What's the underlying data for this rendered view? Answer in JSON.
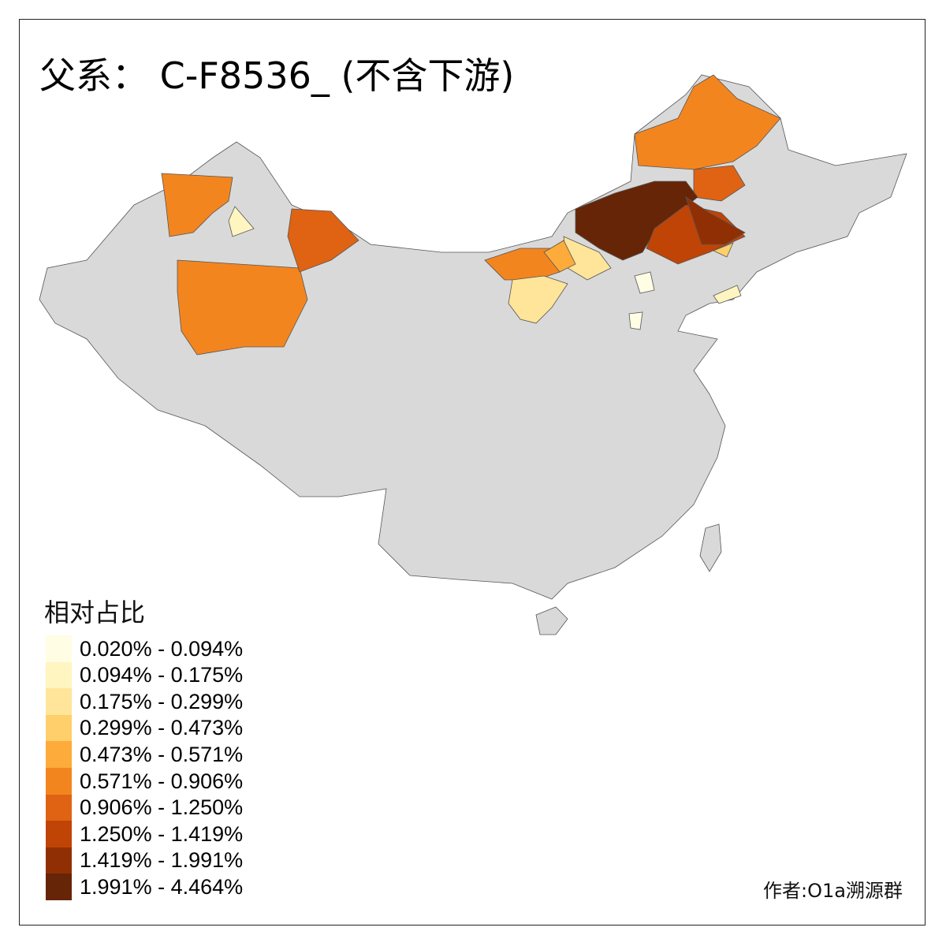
{
  "title": "父系： C-F8536_ (不含下游)",
  "legend": {
    "title": "相对占比",
    "classes": [
      {
        "label": "0.020% - 0.094%",
        "color": "#FFFDE4"
      },
      {
        "label": "0.094% - 0.175%",
        "color": "#FFF5C0"
      },
      {
        "label": "0.175% - 0.299%",
        "color": "#FEE59A"
      },
      {
        "label": "0.299% - 0.473%",
        "color": "#FECF6A"
      },
      {
        "label": "0.473% - 0.571%",
        "color": "#FDAB3A"
      },
      {
        "label": "0.571% - 0.906%",
        "color": "#F3851F"
      },
      {
        "label": "0.906% - 1.250%",
        "color": "#DF6313"
      },
      {
        "label": "1.250% - 1.419%",
        "color": "#C04405"
      },
      {
        "label": "1.419% - 1.991%",
        "color": "#912F04"
      },
      {
        "label": "1.991% - 4.464%",
        "color": "#662506"
      }
    ]
  },
  "no_data_color": "#D9D9D9",
  "author": "作者:O1a溯源群"
}
